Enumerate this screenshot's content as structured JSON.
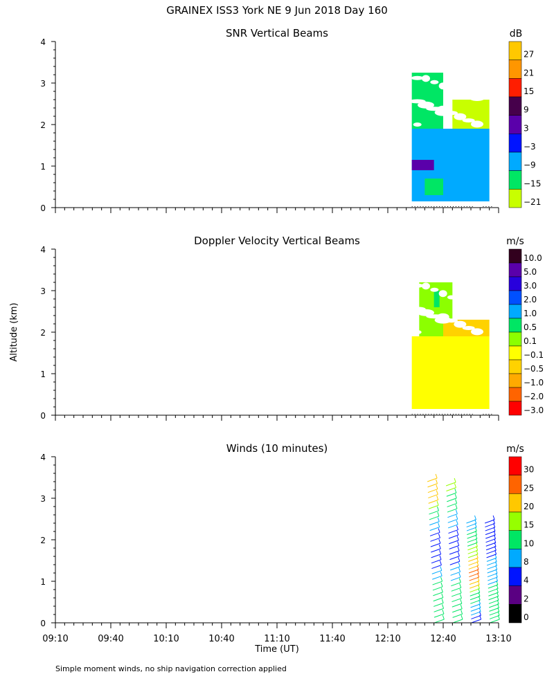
{
  "figure": {
    "title": "GRAINEX ISS3 York NE   9 Jun 2018 Day 160",
    "ylabel": "Altitude (km)",
    "xlabel": "Time (UT)",
    "footnote": "Simple moment winds, no ship navigation correction applied",
    "x_ticks": [
      "09:10",
      "09:40",
      "10:10",
      "10:40",
      "11:10",
      "11:40",
      "12:10",
      "12:40",
      "13:10"
    ],
    "y_ticks": [
      "0",
      "1",
      "2",
      "3",
      "4"
    ]
  },
  "chart_data": [
    {
      "type": "heatmap",
      "title": "SNR Vertical Beams",
      "unit": "dB",
      "xlim": [
        "09:10",
        "13:10"
      ],
      "ylim": [
        0,
        4
      ],
      "colorbar": {
        "labels": [
          "27",
          "21",
          "15",
          "9",
          "3",
          "−3",
          "−9",
          "−15",
          "−21"
        ],
        "colors": [
          "#ffc800",
          "#ff9600",
          "#ff1e00",
          "#46004b",
          "#5a00aa",
          "#0014ff",
          "#00aaff",
          "#00e664",
          "#c8ff00"
        ]
      },
      "data_extent": {
        "time_start": "12:23",
        "time_end": "13:06",
        "alt_min_km": 0.15,
        "alt_max_km": 3.3
      },
      "regions": [
        {
          "t0": "12:23",
          "t1": "13:05",
          "a0": 0.15,
          "a1": 1.9,
          "value": -9
        },
        {
          "t0": "12:23",
          "t1": "12:35",
          "a0": 0.9,
          "a1": 1.15,
          "value": 3
        },
        {
          "t0": "12:23",
          "t1": "12:40",
          "a0": 1.9,
          "a1": 3.25,
          "value": -15
        },
        {
          "t0": "12:45",
          "t1": "13:05",
          "a0": 1.9,
          "a1": 2.6,
          "value": -21
        },
        {
          "t0": "12:30",
          "t1": "12:40",
          "a0": 0.3,
          "a1": 0.7,
          "value": -15
        }
      ]
    },
    {
      "type": "heatmap",
      "title": "Doppler Velocity Vertical Beams",
      "unit": "m/s",
      "xlim": [
        "09:10",
        "13:10"
      ],
      "ylim": [
        0,
        4
      ],
      "colorbar": {
        "labels": [
          "10.0",
          "5.0",
          "3.0",
          "2.0",
          "1.0",
          "0.5",
          "0.1",
          "−0.1",
          "−0.5",
          "−1.0",
          "−2.0",
          "−3.0"
        ],
        "colors": [
          "#32001e",
          "#5a00aa",
          "#2800dc",
          "#0050ff",
          "#00aaff",
          "#00e664",
          "#8cff00",
          "#ffff00",
          "#ffd200",
          "#ffaa00",
          "#ff6400",
          "#ff0000"
        ]
      },
      "data_extent": {
        "time_start": "12:23",
        "time_end": "13:06",
        "alt_min_km": 0.15,
        "alt_max_km": 3.2
      },
      "regions": [
        {
          "t0": "12:23",
          "t1": "13:05",
          "a0": 0.15,
          "a1": 1.9,
          "value": -0.1
        },
        {
          "t0": "12:27",
          "t1": "12:45",
          "a0": 1.9,
          "a1": 3.2,
          "value": 0.1
        },
        {
          "t0": "12:40",
          "t1": "13:05",
          "a0": 1.9,
          "a1": 2.3,
          "value": -0.5
        },
        {
          "t0": "12:35",
          "t1": "12:38",
          "a0": 2.6,
          "a1": 3.0,
          "value": 0.5
        }
      ]
    },
    {
      "type": "scatter",
      "title": "Winds (10 minutes)",
      "unit": "m/s",
      "xlim": [
        "09:10",
        "13:10"
      ],
      "ylim": [
        0,
        4
      ],
      "colorbar": {
        "labels": [
          "30",
          "25",
          "20",
          "15",
          "10",
          "8",
          "4",
          "2",
          "0"
        ],
        "colors": [
          "#ff0000",
          "#ff6400",
          "#ffc800",
          "#96ff00",
          "#00e664",
          "#00aaff",
          "#0014ff",
          "#5a0082",
          "#000000"
        ]
      },
      "profiles": [
        {
          "time": "12:33",
          "alt_km": [
            0.0,
            0.5,
            1.0,
            1.5,
            2.0,
            2.5,
            3.0,
            3.4
          ],
          "speed_ms": [
            10,
            12,
            9,
            4,
            3,
            10,
            20,
            22
          ]
        },
        {
          "time": "12:43",
          "alt_km": [
            0.0,
            0.5,
            1.0,
            1.5,
            2.0,
            2.5,
            3.0,
            3.3
          ],
          "speed_ms": [
            12,
            11,
            9,
            5,
            4,
            8,
            12,
            14
          ]
        },
        {
          "time": "12:53",
          "alt_km": [
            0.0,
            0.3,
            0.7,
            1.0,
            1.3,
            1.6,
            2.0,
            2.4
          ],
          "speed_ms": [
            4,
            8,
            12,
            26,
            22,
            15,
            10,
            8
          ]
        },
        {
          "time": "13:03",
          "alt_km": [
            0.0,
            0.5,
            1.0,
            1.5,
            2.0,
            2.4
          ],
          "speed_ms": [
            10,
            12,
            8,
            6,
            4,
            5
          ]
        }
      ]
    }
  ]
}
